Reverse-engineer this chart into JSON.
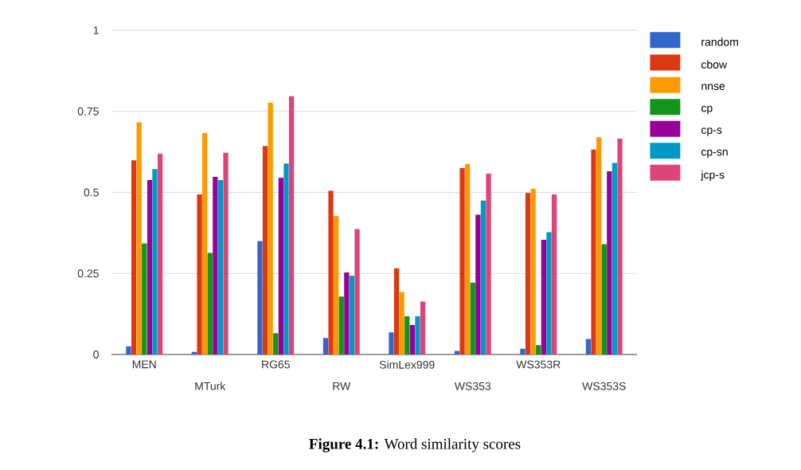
{
  "chart_data": {
    "type": "bar",
    "categories": [
      "MEN",
      "MTurk",
      "RG65",
      "RW",
      "SimLex999",
      "WS353",
      "WS353R",
      "WS353S"
    ],
    "series": [
      {
        "name": "random",
        "color": "#3366cc",
        "values": [
          0.025,
          0.008,
          0.35,
          0.051,
          0.068,
          0.011,
          0.018,
          0.048
        ]
      },
      {
        "name": "cbow",
        "color": "#dc3912",
        "values": [
          0.599,
          0.494,
          0.643,
          0.505,
          0.266,
          0.575,
          0.498,
          0.632
        ]
      },
      {
        "name": "nnse",
        "color": "#ff9900",
        "values": [
          0.716,
          0.683,
          0.777,
          0.427,
          0.193,
          0.588,
          0.511,
          0.67
        ]
      },
      {
        "name": "cp",
        "color": "#109618",
        "values": [
          0.343,
          0.313,
          0.066,
          0.179,
          0.118,
          0.222,
          0.029,
          0.34
        ]
      },
      {
        "name": "cp-s",
        "color": "#990099",
        "values": [
          0.538,
          0.548,
          0.545,
          0.253,
          0.091,
          0.431,
          0.354,
          0.565
        ]
      },
      {
        "name": "cp-sn",
        "color": "#0099c6",
        "values": [
          0.572,
          0.538,
          0.589,
          0.243,
          0.118,
          0.475,
          0.377,
          0.591
        ]
      },
      {
        "name": "jcp-s",
        "color": "#dd4477",
        "values": [
          0.619,
          0.622,
          0.797,
          0.387,
          0.163,
          0.558,
          0.494,
          0.666
        ]
      }
    ],
    "ylim": [
      0,
      1
    ],
    "yticks": [
      0,
      0.25,
      0.5,
      0.75,
      1
    ],
    "grid": "y",
    "legend": "top right",
    "annotations": [
      "**Figure 4.1:** Word similarity scores"
    ]
  }
}
